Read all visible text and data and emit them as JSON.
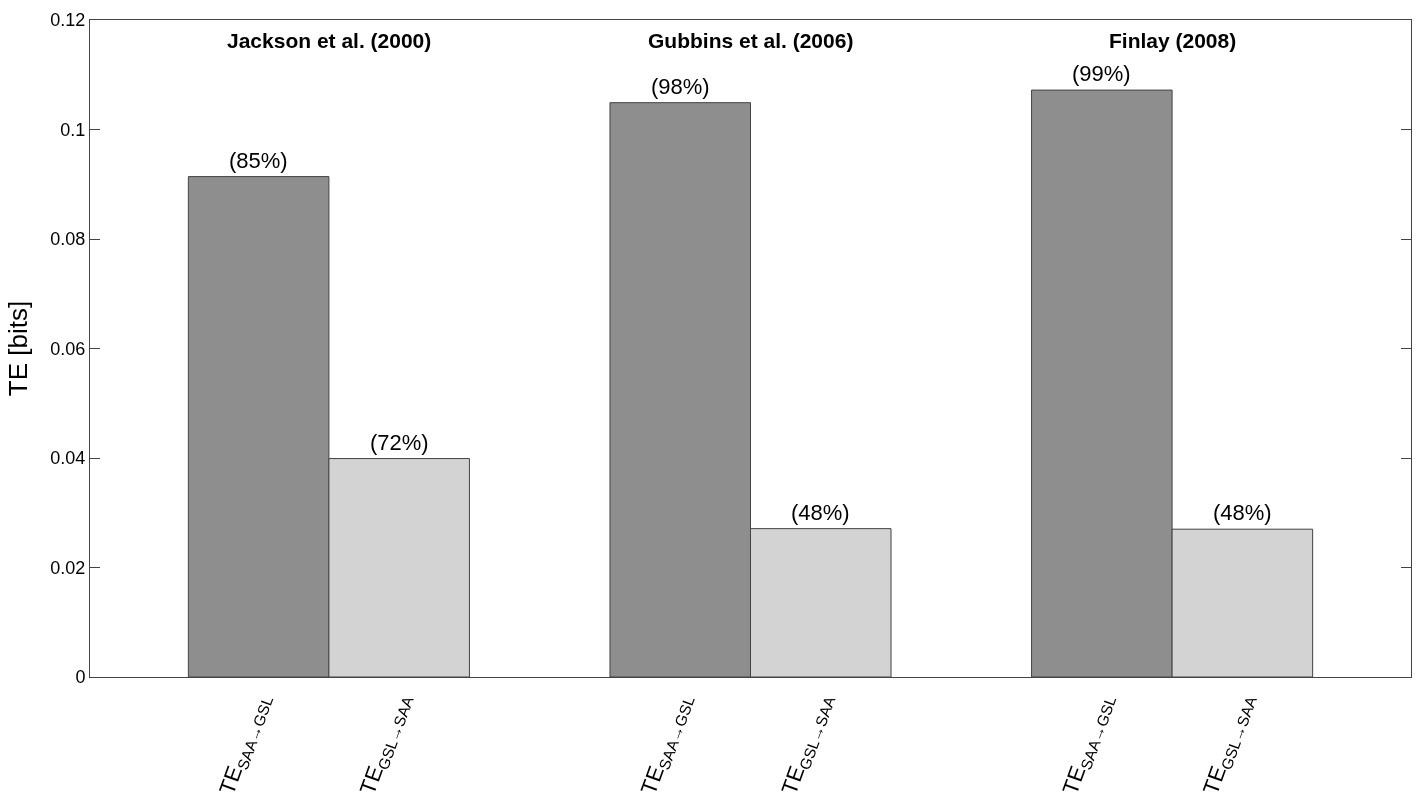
{
  "chart_data": {
    "type": "bar",
    "ylabel": "TE [bits]",
    "categories": [
      "TE$_{SAA→GSL}$",
      "TE$_{GSL→SAA}$",
      null,
      "TE$_{SAA→GSL}$",
      "TE$_{GSL→SAA}$",
      null,
      "TE$_{SAA→GSL}$",
      "TE$_{GSL→SAA}$"
    ],
    "values": [
      0.0914,
      0.0399,
      null,
      0.1049,
      0.0271,
      null,
      0.1072,
      0.027
    ],
    "colors": [
      "#8e8e8e",
      "#d3d3d3",
      "#ffffff",
      "#8e8e8e",
      "#d3d3d3",
      "#ffffff",
      "#8e8e8e",
      "#d3d3d3"
    ],
    "annotations": [
      "Jackson et al. (2000)",
      "Gubbins et al. (2006)",
      "Finlay (2008)",
      {
        "text": "(85%)",
        "y": 0.0914
      },
      {
        "text": "(72%)",
        "y": 0.0399
      },
      {
        "text": "(98%)",
        "y": 0.1049
      },
      {
        "text": "(48%)",
        "y": 0.0271
      },
      {
        "text": "(99%)",
        "y": 0.1072
      },
      {
        "text": "(48%)",
        "y": 0.027
      }
    ],
    "ylim": [
      0,
      0.12
    ],
    "yticks": [
      0,
      0.02,
      0.04,
      0.06,
      0.08,
      0.1,
      0.12
    ]
  }
}
